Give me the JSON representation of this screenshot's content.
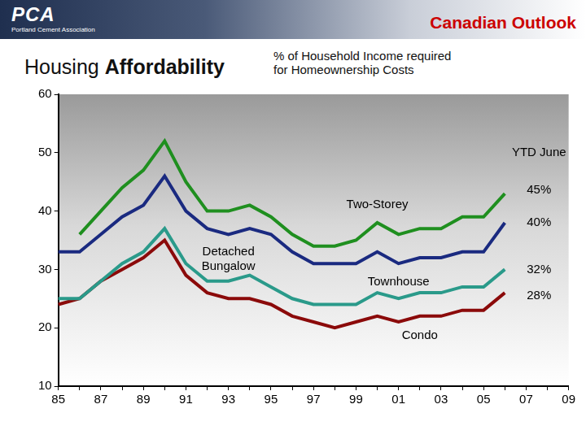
{
  "header": {
    "logo": "PCA",
    "organization": "Portland Cement Association",
    "section": "Canadian Outlook"
  },
  "chart_data": {
    "type": "line",
    "title": "Housing Affordability",
    "subtitle": "% of Household Income required for Homeownership Costs",
    "categories": [
      "85",
      null,
      "87",
      null,
      "89",
      null,
      "91",
      null,
      "93",
      null,
      "95",
      null,
      "97",
      null,
      "99",
      null,
      "01",
      null,
      "03",
      null,
      "05",
      null,
      "07",
      null,
      "09"
    ],
    "series": [
      {
        "name": "Two-Storey",
        "color": "#1f8f1f",
        "end_label": "45%",
        "values": [
          null,
          36,
          40,
          44,
          47,
          52,
          45,
          40,
          40,
          41,
          39,
          36,
          34,
          34,
          35,
          38,
          36,
          37,
          37,
          39,
          39,
          43,
          null,
          null,
          null
        ]
      },
      {
        "name": "Detached Bungalow",
        "color": "#1a2a80",
        "end_label": "40%",
        "values": [
          33,
          33,
          36,
          39,
          41,
          46,
          40,
          37,
          36,
          37,
          36,
          33,
          31,
          31,
          31,
          33,
          31,
          32,
          32,
          33,
          33,
          38,
          null,
          null,
          null
        ]
      },
      {
        "name": "Townhouse",
        "color": "#2a9a8a",
        "end_label": "32%",
        "values": [
          25,
          25,
          28,
          31,
          33,
          37,
          31,
          28,
          28,
          29,
          27,
          25,
          24,
          24,
          24,
          26,
          25,
          26,
          26,
          27,
          27,
          30,
          null,
          null,
          null
        ]
      },
      {
        "name": "Condo",
        "color": "#8b0a0a",
        "end_label": "28%",
        "values": [
          24,
          25,
          28,
          30,
          32,
          35,
          29,
          26,
          25,
          25,
          24,
          22,
          21,
          20,
          21,
          22,
          21,
          22,
          22,
          23,
          23,
          26,
          null,
          null,
          null
        ]
      }
    ],
    "annotations": [
      "YTD June"
    ],
    "ylim": [
      10,
      60
    ],
    "yticks": [
      10,
      20,
      30,
      40,
      50,
      60
    ],
    "grid": false
  }
}
